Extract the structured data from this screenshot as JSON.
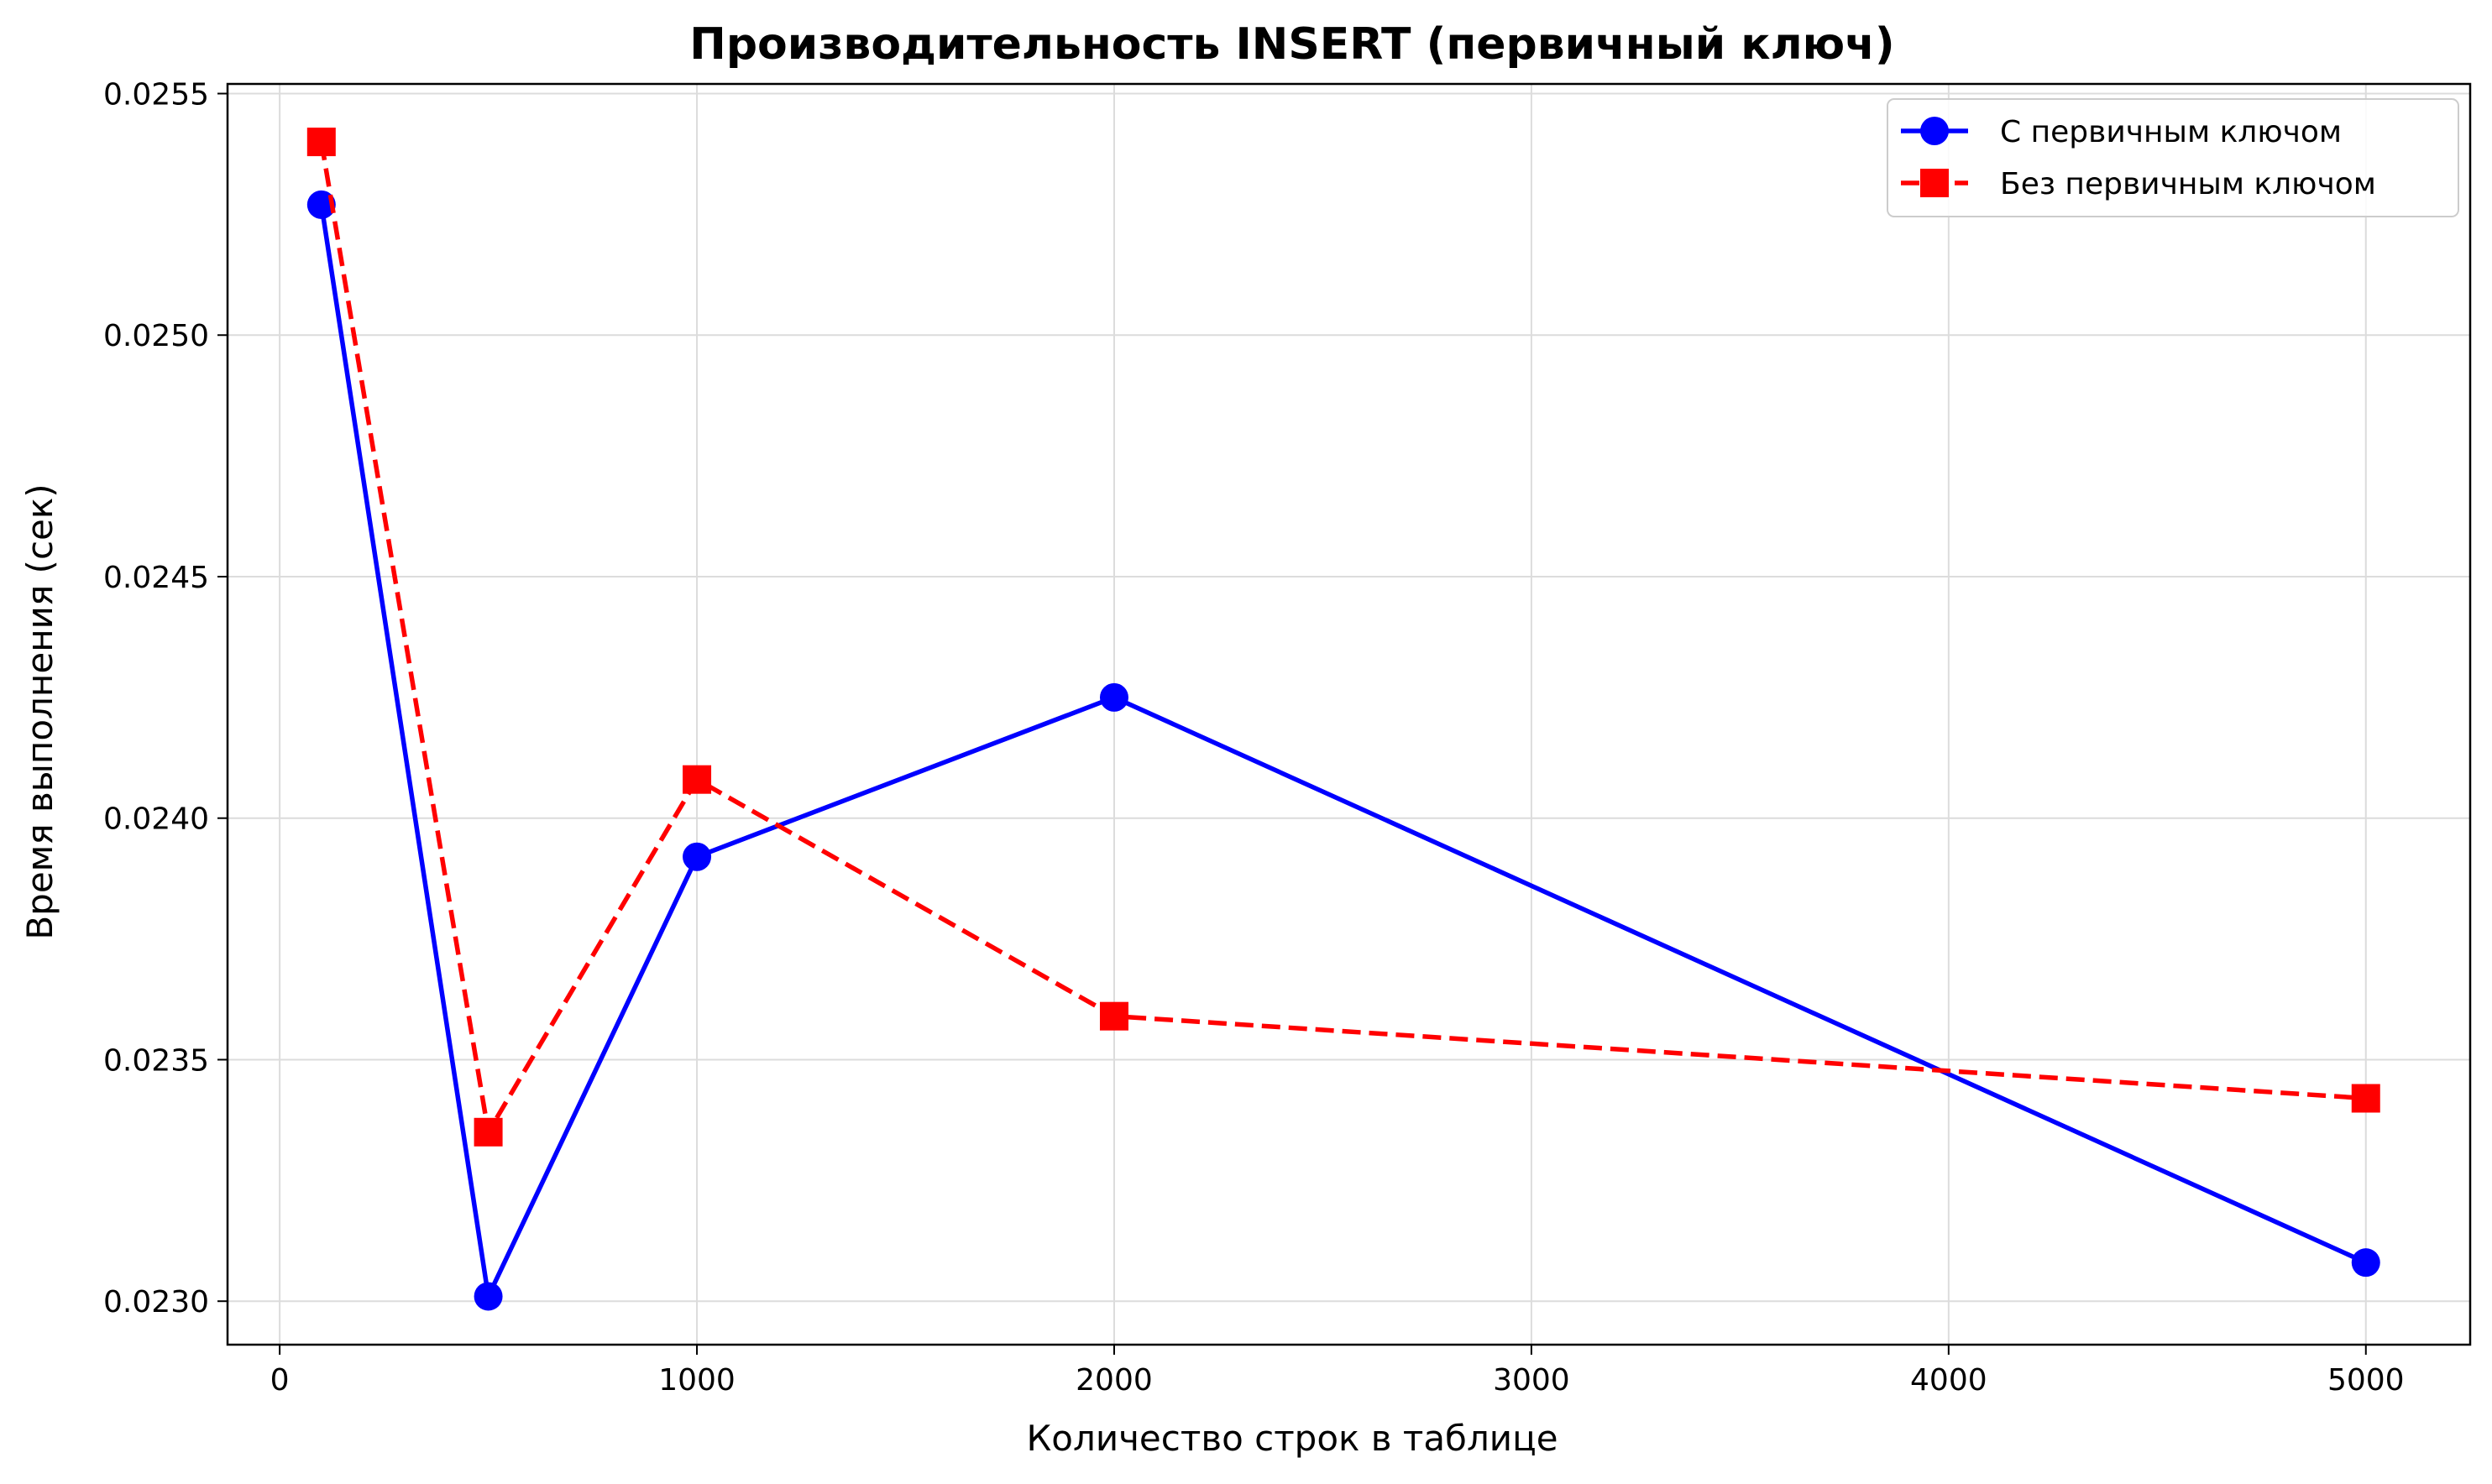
{
  "chart_data": {
    "type": "line",
    "title": "Производительность INSERT (первичный ключ)",
    "xlabel": "Количество строк в таблице",
    "ylabel": "Время выполнения (сек)",
    "xlim": [
      -125,
      5250
    ],
    "ylim": [
      0.02291,
      0.02552
    ],
    "xticks": [
      0,
      1000,
      2000,
      3000,
      4000,
      5000
    ],
    "yticks": [
      0.023,
      0.0235,
      0.024,
      0.0245,
      0.025,
      0.0255
    ],
    "ytick_labels": [
      "0.0230",
      "0.0235",
      "0.0240",
      "0.0245",
      "0.0250",
      "0.0255"
    ],
    "grid": true,
    "legend_position": "top-right",
    "series": [
      {
        "name": "С первичным ключом",
        "color": "#0000ff",
        "line_style": "solid",
        "marker": "circle",
        "x": [
          100,
          500,
          1000,
          2000,
          5000
        ],
        "y": [
          0.02527,
          0.02301,
          0.02392,
          0.02425,
          0.02308
        ]
      },
      {
        "name": "Без первичным ключом",
        "color": "#ff0000",
        "line_style": "dashed",
        "marker": "square",
        "x": [
          100,
          500,
          1000,
          2000,
          5000
        ],
        "y": [
          0.0254,
          0.02335,
          0.02408,
          0.02359,
          0.02342
        ]
      }
    ]
  }
}
